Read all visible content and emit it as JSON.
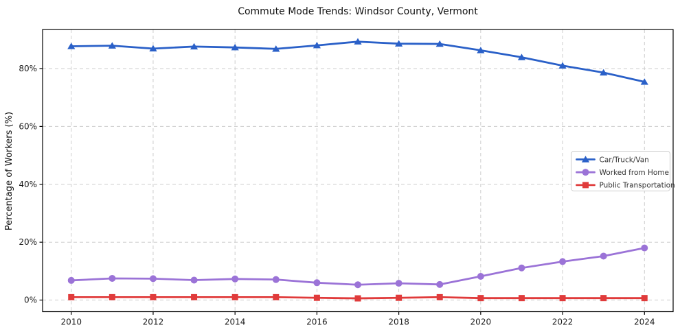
{
  "chart_data": {
    "type": "line",
    "title": "Commute Mode Trends: Windsor County, Vermont",
    "xlabel": "",
    "ylabel": "Percentage of Workers (%)",
    "x": [
      2010,
      2011,
      2012,
      2013,
      2014,
      2015,
      2016,
      2017,
      2018,
      2019,
      2020,
      2021,
      2022,
      2023,
      2024
    ],
    "series": [
      {
        "name": "Car/Truck/Van",
        "marker": "triangle",
        "color": "#2a60c8",
        "values": [
          87.7,
          87.9,
          86.9,
          87.6,
          87.3,
          86.8,
          88.0,
          89.3,
          88.6,
          88.5,
          86.3,
          83.9,
          81.0,
          78.6,
          75.4
        ]
      },
      {
        "name": "Worked from Home",
        "marker": "circle",
        "color": "#9b73d7",
        "values": [
          6.8,
          7.5,
          7.4,
          6.9,
          7.3,
          7.1,
          6.0,
          5.3,
          5.8,
          5.4,
          8.2,
          11.1,
          13.3,
          15.2,
          18.0
        ]
      },
      {
        "name": "Public Transportation",
        "marker": "square",
        "color": "#e03b3b",
        "values": [
          1.0,
          1.0,
          1.0,
          1.0,
          1.0,
          1.0,
          0.8,
          0.6,
          0.8,
          1.0,
          0.7,
          0.7,
          0.7,
          0.7,
          0.7
        ]
      }
    ],
    "x_ticks": [
      2010,
      2012,
      2014,
      2016,
      2018,
      2020,
      2022,
      2024
    ],
    "x_tick_labels": [
      "2010",
      "2012",
      "2014",
      "2016",
      "2018",
      "2020",
      "2022",
      "2024"
    ],
    "y_ticks": [
      0,
      20,
      40,
      60,
      80
    ],
    "y_tick_labels": [
      "0%",
      "20%",
      "40%",
      "60%",
      "80%"
    ],
    "xlim": [
      2009.3,
      2024.7
    ],
    "ylim": [
      -4.0,
      93.5
    ],
    "grid": true,
    "grid_style": "dashed",
    "legend": {
      "position": "center-right"
    },
    "colors": {
      "background": "#ffffff",
      "grid": "#cccccc",
      "spine": "#000000",
      "tick_text": "#1c1c1c",
      "legend_border": "#cccccc",
      "legend_background": "#ffffff",
      "legend_text": "#333333"
    }
  }
}
